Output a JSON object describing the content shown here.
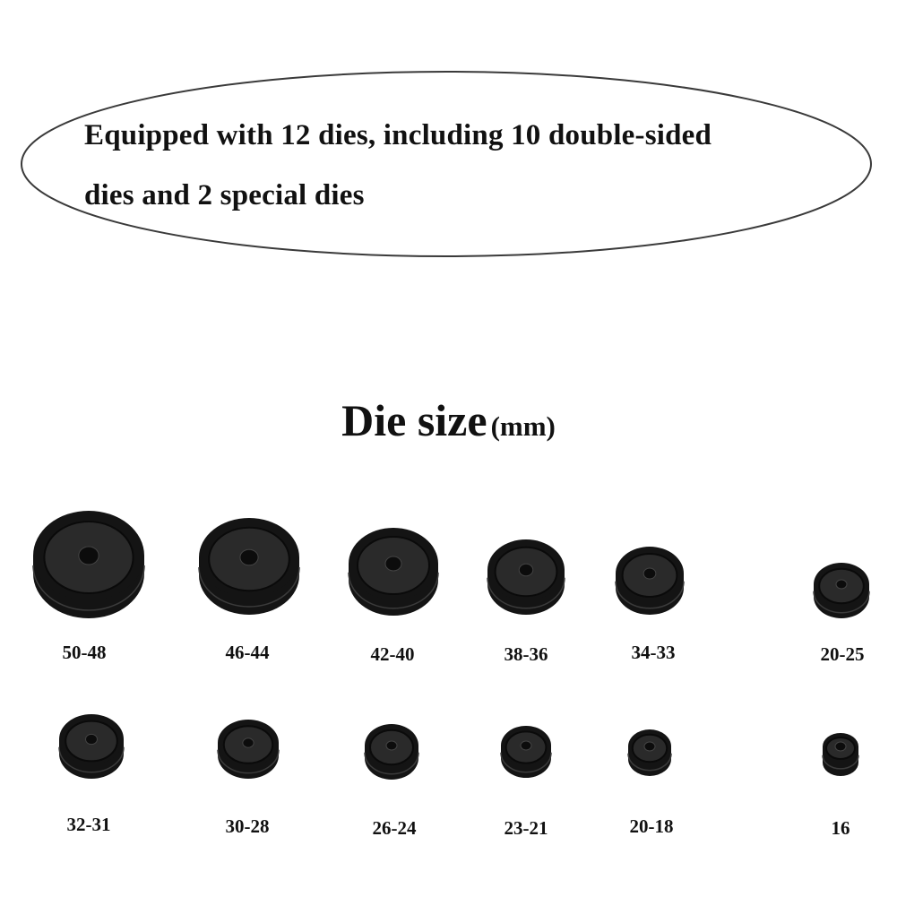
{
  "banner": {
    "line1": "Equipped with 12 dies, including 10 double-sided",
    "line2": "dies and 2 special dies"
  },
  "heading": {
    "main": "Die size",
    "unit": "(mm)"
  },
  "dies_row1": [
    "50-48",
    "46-44",
    "42-40",
    "38-36",
    "34-33",
    "20-25"
  ],
  "dies_row2": [
    "32-31",
    "30-28",
    "26-24",
    "23-21",
    "20-18",
    "16"
  ],
  "colors": {
    "die": "#141414",
    "die_highlight": "#2a2a2a",
    "ellipse_stroke": "#3a3a3a",
    "text": "#111111"
  }
}
